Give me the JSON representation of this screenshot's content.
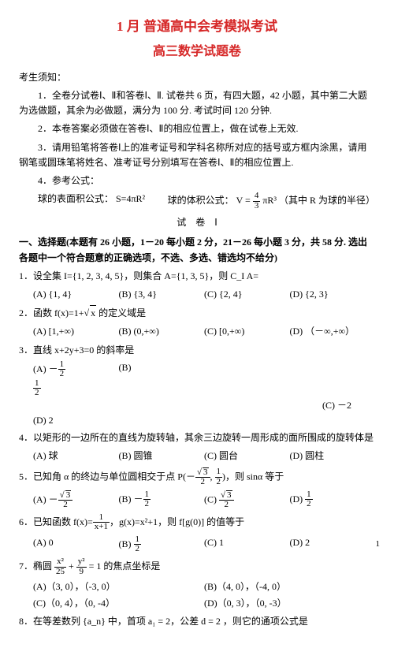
{
  "title1": "1 月  普通高中会考模拟考试",
  "title2": "高三数学试题卷",
  "notice_header": "考生须知：",
  "notice1": "1．全卷分试卷Ⅰ、Ⅱ和答卷Ⅰ、Ⅱ. 试卷共 6 页，有四大题，42 小题，其中第二大题为选做题，其余为必做题，满分为 100 分. 考试时间 120 分钟.",
  "notice2": "2．本卷答案必须做在答卷Ⅰ、Ⅱ的相应位置上，做在试卷上无效.",
  "notice3": "3．请用铅笔将答卷Ⅰ上的准考证号和学科名称所对应的括号或方框内涂黑，请用钢笔或圆珠笔将姓名、准考证号分别填写在答卷Ⅰ、Ⅱ的相应位置上.",
  "notice4": "4．参考公式：",
  "formula_surface": "球的表面积公式： S=4πR²",
  "formula_volume_label": "球的体积公式：",
  "formula_volume_tail": "（其中 R 为球的半径）",
  "paper_label": "试　卷　Ⅰ",
  "section_head": "一、选择题(本题有 26 小题，1－20 每小题 2 分，21－26 每小题 3 分，共 58 分. 选出各题中一个符合题意的正确选项，不选、多选、错选均不给分)",
  "q1": "1．设全集 I={1, 2, 3, 4, 5}，则集合 A={1, 3, 5}，则 C_I A=",
  "q1a": "(A) {1, 4}",
  "q1b": "(B) {3, 4}",
  "q1c": "(C) {2, 4}",
  "q1d": "(D) {2, 3}",
  "q2": "2．函数 f(x)=1+",
  "q2_tail": " 的定义域是",
  "q2a": "(A) [1,+∞)",
  "q2b": "(B) (0,+∞)",
  "q2c": "(C) [0,+∞)",
  "q2d": "(D) （－∞,+∞）",
  "q3": "3．直线 x+2y+3=0 的斜率是",
  "q3b": "(B)",
  "q3c": "(C) －2",
  "q3d": "(D) 2",
  "q4": "4．以矩形的一边所在的直线为旋转轴，其余三边旋转一周形成的面所围成的旋转体是",
  "q4a": "(A) 球",
  "q4b": "(B) 圆锥",
  "q4c": "(C) 圆台",
  "q4d": "(D) 圆柱",
  "q5_head": "5．已知角 α 的终边与单位圆相交于点 P(－",
  "q5_mid": ", ",
  "q5_tail": ")，则 sinα 等于",
  "q6_head": "6．已知函数 f(x)=",
  "q6_mid": "，g(x)=x²+1，则 f[g(0)] 的值等于",
  "q6a": "(A) 0",
  "q6c": "(C) 1",
  "q6d": "(D) 2",
  "q7_head": "7．椭圆",
  "q7_tail": " 的焦点坐标是",
  "q7a": "(A)（3, 0），（-3, 0）",
  "q7b": "(B)（4, 0），（-4, 0）",
  "q7c": "(C)（0, 4），（0, -4）",
  "q7d": "(D)（0, 3），（0, -3）",
  "q8": "8．在等差数列 {a_n} 中，首项 a₁ = 2，公差 d = 2 ，则它的通项公式是",
  "pagenum": "1",
  "optA": "(A) －",
  "optB": "(B) －",
  "optC": "(C) ",
  "optD": "(D) ",
  "optBfrac": "(B) "
}
